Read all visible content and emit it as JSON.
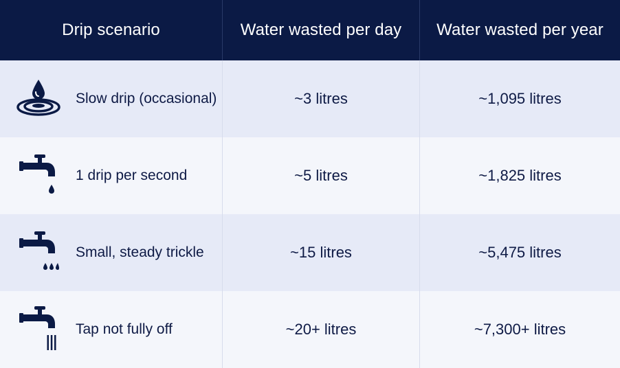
{
  "columns": [
    "Drip scenario",
    "Water wasted per day",
    "Water wasted per year"
  ],
  "rows": [
    {
      "icon": "water-drop-ripple-icon",
      "scenario": "Slow drip (occasional)",
      "per_day": "~3 litres",
      "per_year": "~1,095 litres"
    },
    {
      "icon": "tap-single-drip-icon",
      "scenario": "1 drip per second",
      "per_day": "~5 litres",
      "per_year": "~1,825 litres"
    },
    {
      "icon": "tap-three-drips-icon",
      "scenario": "Small, steady trickle",
      "per_day": "~15 litres",
      "per_year": "~5,475 litres"
    },
    {
      "icon": "tap-stream-icon",
      "scenario": "Tap not fully off",
      "per_day": "~20+ litres",
      "per_year": "~7,300+ litres"
    }
  ],
  "colors": {
    "header_bg": "#0b1a45",
    "row_shade": "#e6eaf7",
    "row_light": "#f4f6fb",
    "text": "#0e1a45"
  }
}
